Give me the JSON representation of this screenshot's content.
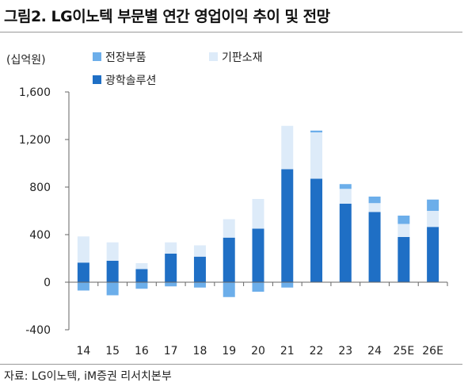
{
  "title": "그림2. LG이노텍 부문별 연간 영업이익 추이 및 전망",
  "source": "자료: LG이노텍, iM증권 리서치본부",
  "chart_data": {
    "type": "bar",
    "stacked": true,
    "ylabel": "(십억원)",
    "categories": [
      "14",
      "15",
      "16",
      "17",
      "18",
      "19",
      "20",
      "21",
      "22",
      "23",
      "24",
      "25E",
      "26E"
    ],
    "ylim": [
      -400,
      1600
    ],
    "yticks": [
      -400,
      0,
      400,
      800,
      1200,
      1600
    ],
    "ytick_labels": [
      "-400",
      "0",
      "400",
      "800",
      "1,200",
      "1,600"
    ],
    "legend_position": "top-left",
    "series": [
      {
        "name": "광학솔루션",
        "color": "#1f6fc5",
        "values": [
          165,
          180,
          110,
          240,
          215,
          375,
          450,
          950,
          870,
          660,
          590,
          380,
          465
        ]
      },
      {
        "name": "기판소재",
        "color": "#ddebf9",
        "values": [
          220,
          155,
          50,
          95,
          95,
          155,
          250,
          365,
          390,
          125,
          75,
          110,
          135
        ]
      },
      {
        "name": "전장부품",
        "color": "#6caeea",
        "values": [
          -70,
          -110,
          -55,
          -35,
          -45,
          -125,
          -80,
          -45,
          15,
          40,
          55,
          70,
          95
        ]
      }
    ],
    "grid": false
  }
}
